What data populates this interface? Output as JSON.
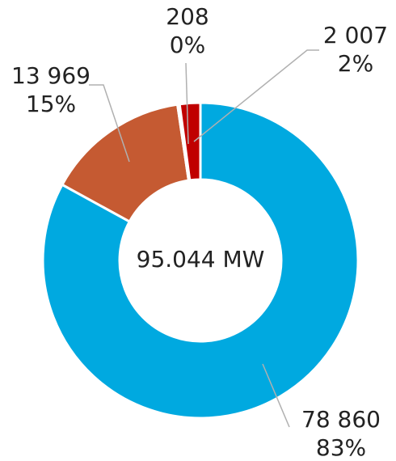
{
  "chart_data": {
    "type": "donut",
    "center_label": "95.044 MW",
    "values": [
      78860,
      13969,
      208,
      2007
    ],
    "value_labels": [
      "78 860",
      "13 969",
      "208",
      "2 007"
    ],
    "percent_labels": [
      "83%",
      "15%",
      "0%",
      "2%"
    ],
    "colors": [
      "#00a9e0",
      "#c55a32",
      "#f3d9cc",
      "#c00000"
    ]
  }
}
